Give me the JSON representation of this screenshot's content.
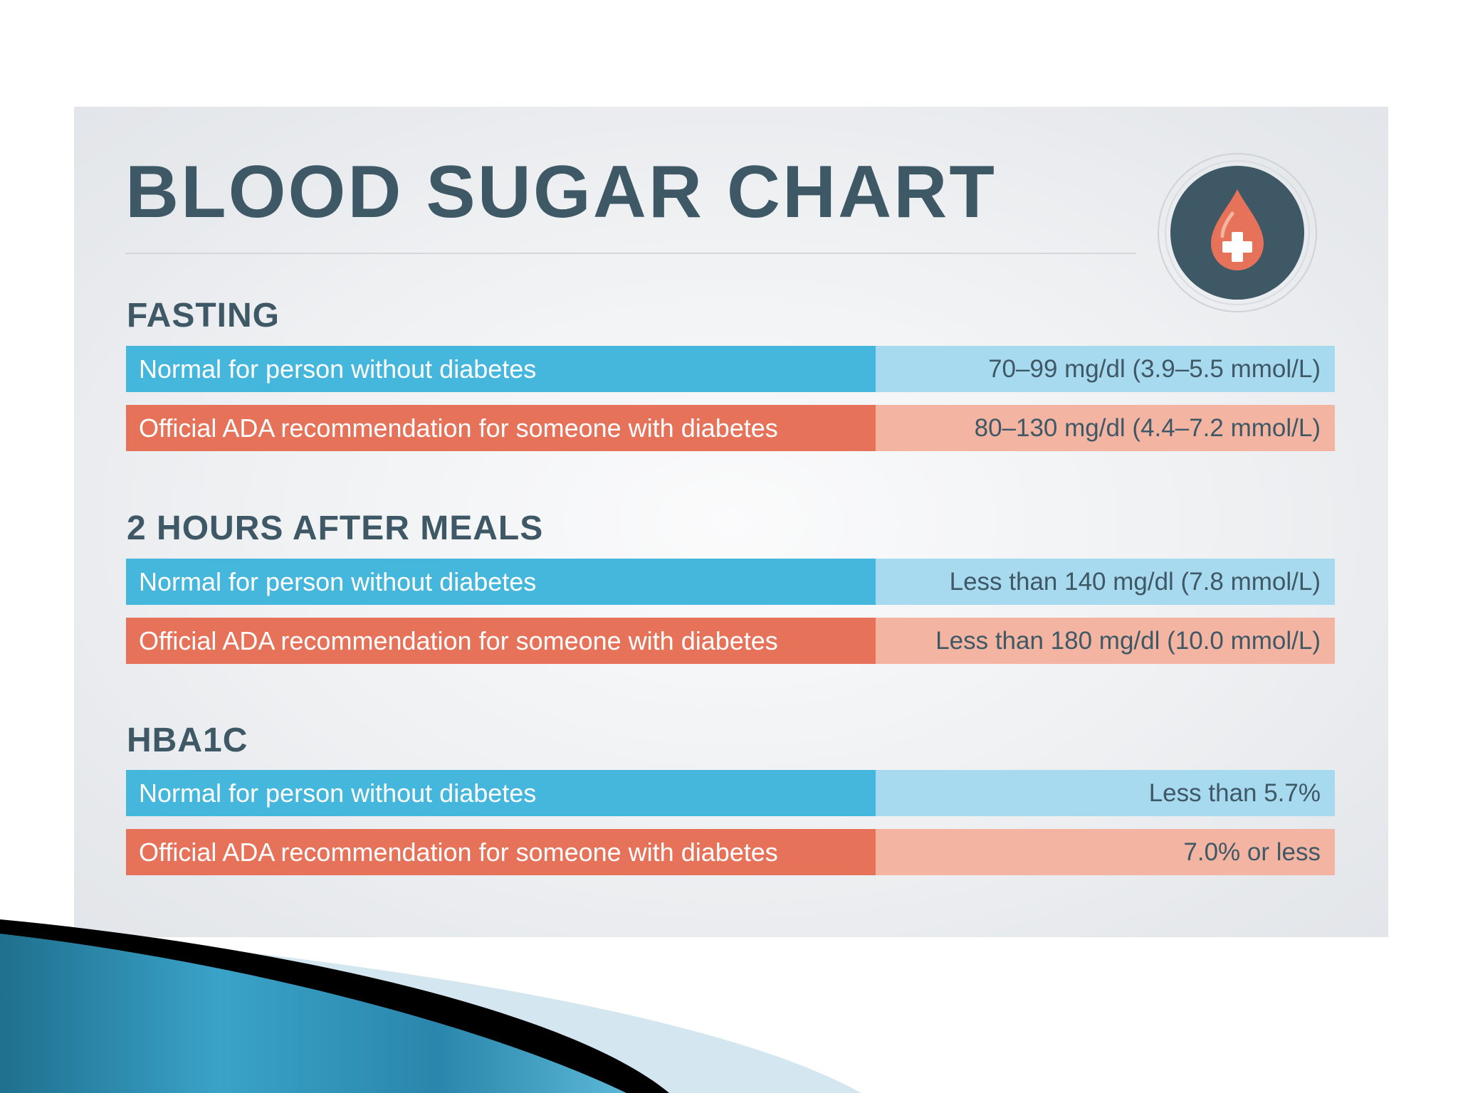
{
  "title": "BLOOD SUGAR CHART",
  "icon": "blood-drop-plus-icon",
  "colors": {
    "heading": "#3f5866",
    "normal_label_bg": "#45b6dc",
    "normal_value_bg": "#a7d9ef",
    "ada_label_bg": "#e7725a",
    "ada_value_bg": "#f3b4a2",
    "badge_circle": "#3f5866",
    "drop": "#e7725a"
  },
  "sections": [
    {
      "heading": "FASTING",
      "rows": [
        {
          "label": "Normal for person without diabetes",
          "value": "70–99 mg/dl (3.9–5.5 mmol/L)"
        },
        {
          "label": "Official ADA recommendation for someone with diabetes",
          "value": "80–130 mg/dl (4.4–7.2 mmol/L)"
        }
      ]
    },
    {
      "heading": "2 HOURS AFTER MEALS",
      "rows": [
        {
          "label": "Normal for person without diabetes",
          "value": "Less than 140 mg/dl (7.8 mmol/L)"
        },
        {
          "label": "Official ADA recommendation for someone with diabetes",
          "value": "Less than 180 mg/dl (10.0 mmol/L)"
        }
      ]
    },
    {
      "heading": "HBA1C",
      "rows": [
        {
          "label": "Normal for person without diabetes",
          "value": "Less than 5.7%"
        },
        {
          "label": "Official ADA recommendation for someone with diabetes",
          "value": "7.0% or less"
        }
      ]
    }
  ]
}
